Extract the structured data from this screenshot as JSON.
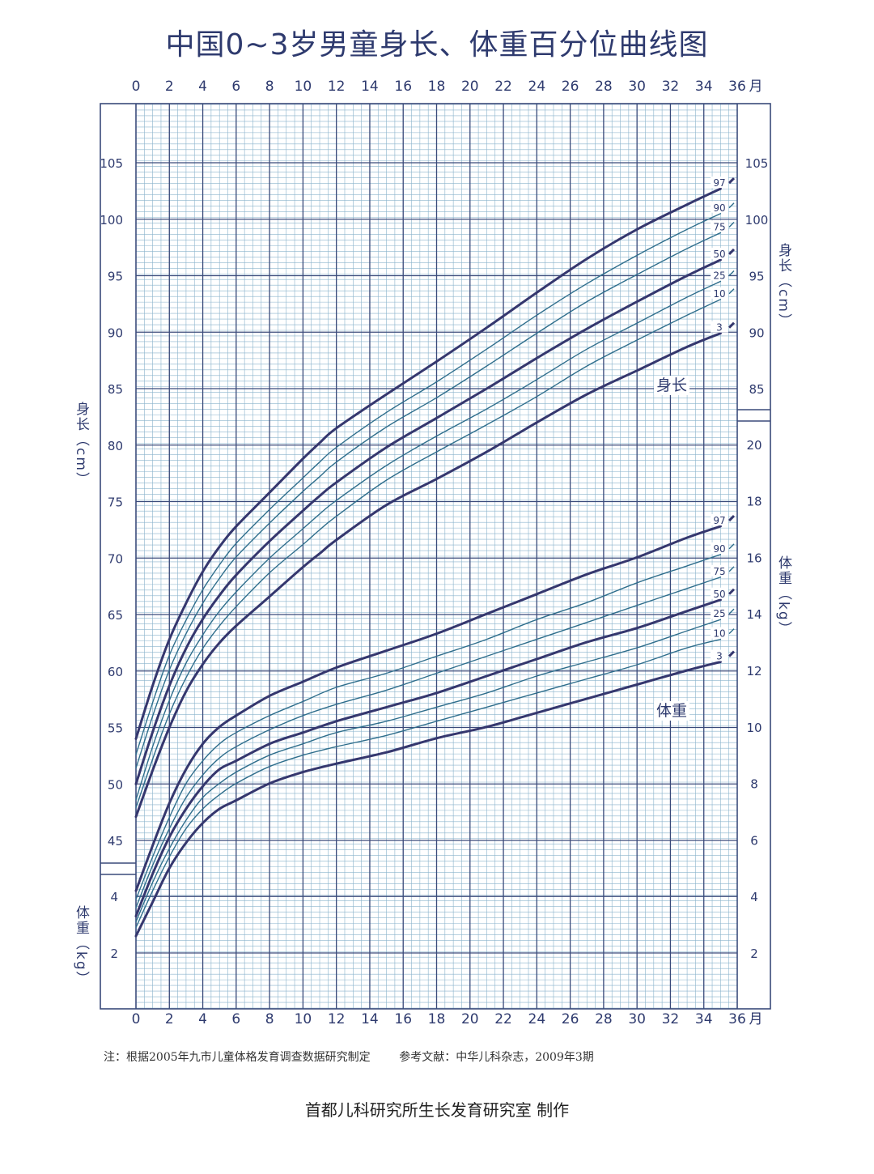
{
  "title": "中国0~3岁男童身长、体重百分位曲线图",
  "note": "注：根据2005年九市儿童体格发育调查数据研究制定        参考文献：中华儿科杂志，2009年3期",
  "credit": "首都儿科研究所生长发育研究室  制作",
  "chart_data": {
    "type": "line",
    "x_unit": "月",
    "x_ticks": [
      0,
      2,
      4,
      6,
      8,
      10,
      12,
      14,
      16,
      18,
      20,
      22,
      24,
      26,
      28,
      30,
      32,
      34,
      36
    ],
    "xlim": [
      0,
      36
    ],
    "colors": {
      "bold": "#35376e",
      "thin": "#2f6e8c",
      "grid_major": "#3a4a7a",
      "grid_minor": "#8ab3cc"
    },
    "length": {
      "axis_label_left": "身长（cm）",
      "axis_label_right": "身长（cm）",
      "curve_label": "身长",
      "ylim": [
        43,
        110
      ],
      "left_ticks": [
        45,
        50,
        55,
        60,
        65,
        70,
        75,
        80,
        85,
        90,
        95,
        100,
        105
      ],
      "right_ticks": [
        85,
        90,
        95,
        100,
        105
      ],
      "months": [
        0,
        1,
        2,
        3,
        4,
        5,
        6,
        8,
        10,
        11,
        12,
        15,
        18,
        21,
        24,
        27,
        30,
        33,
        35
      ],
      "series": [
        {
          "name": "97",
          "bold": true,
          "values": [
            54.0,
            58.7,
            62.8,
            66.0,
            68.8,
            71.0,
            72.8,
            75.8,
            78.8,
            80.2,
            81.5,
            84.5,
            87.4,
            90.4,
            93.5,
            96.5,
            99.1,
            101.3,
            102.7
          ]
        },
        {
          "name": "90",
          "bold": false,
          "values": [
            52.6,
            57.2,
            61.4,
            64.5,
            67.2,
            69.4,
            71.3,
            74.3,
            77.1,
            78.5,
            79.8,
            82.9,
            85.6,
            88.5,
            91.5,
            94.3,
            96.8,
            99.1,
            100.5
          ]
        },
        {
          "name": "75",
          "bold": false,
          "values": [
            51.4,
            56.0,
            60.1,
            63.3,
            66.0,
            68.2,
            70.1,
            73.1,
            75.9,
            77.2,
            78.5,
            81.6,
            84.2,
            87.0,
            89.9,
            92.7,
            95.1,
            97.4,
            98.8
          ]
        },
        {
          "name": "50",
          "bold": true,
          "values": [
            50.0,
            54.6,
            58.7,
            62.0,
            64.6,
            66.7,
            68.5,
            71.5,
            74.2,
            75.5,
            76.7,
            79.8,
            82.4,
            85.0,
            87.7,
            90.3,
            92.7,
            95.0,
            96.4
          ]
        },
        {
          "name": "25",
          "bold": false,
          "values": [
            48.6,
            53.3,
            57.4,
            60.7,
            63.2,
            65.3,
            67.0,
            70.0,
            72.6,
            73.9,
            75.1,
            78.2,
            80.8,
            83.2,
            85.8,
            88.5,
            90.8,
            93.1,
            94.5
          ]
        },
        {
          "name": "10",
          "bold": false,
          "values": [
            47.9,
            52.2,
            56.2,
            59.4,
            62.0,
            64.0,
            65.7,
            68.7,
            71.2,
            72.5,
            73.7,
            76.9,
            79.4,
            81.8,
            84.3,
            87.0,
            89.3,
            91.5,
            92.9
          ]
        },
        {
          "name": "3",
          "bold": true,
          "values": [
            47.1,
            51.2,
            55.0,
            58.2,
            60.6,
            62.5,
            64.0,
            66.6,
            69.2,
            70.4,
            71.6,
            74.7,
            77.0,
            79.4,
            82.0,
            84.5,
            86.6,
            88.7,
            89.9
          ]
        }
      ]
    },
    "weight": {
      "axis_label_left": "体重（kg）",
      "axis_label_right": "体重（kg）",
      "curve_label": "体重",
      "ylim": [
        0,
        22.5
      ],
      "left_ticks": [
        2,
        4
      ],
      "right_ticks": [
        2,
        4,
        6,
        8,
        10,
        12,
        14,
        16,
        18,
        20
      ],
      "months": [
        0,
        1,
        2,
        3,
        4,
        5,
        6,
        8,
        10,
        12,
        15,
        18,
        21,
        24,
        27,
        30,
        33,
        35
      ],
      "series": [
        {
          "name": "97",
          "bold": true,
          "values": [
            4.2,
            5.8,
            7.3,
            8.5,
            9.4,
            10.0,
            10.4,
            11.1,
            11.6,
            12.1,
            12.7,
            13.3,
            14.0,
            14.7,
            15.4,
            16.0,
            16.7,
            17.1
          ]
        },
        {
          "name": "90",
          "bold": false,
          "values": [
            3.9,
            5.4,
            6.8,
            8.0,
            8.8,
            9.4,
            9.8,
            10.4,
            10.9,
            11.4,
            11.9,
            12.5,
            13.1,
            13.8,
            14.4,
            15.1,
            15.7,
            16.1
          ]
        },
        {
          "name": "75",
          "bold": false,
          "values": [
            3.6,
            5.1,
            6.4,
            7.5,
            8.3,
            8.9,
            9.3,
            9.9,
            10.4,
            10.8,
            11.3,
            11.9,
            12.5,
            13.1,
            13.7,
            14.3,
            14.9,
            15.3
          ]
        },
        {
          "name": "50",
          "bold": true,
          "values": [
            3.3,
            4.8,
            6.1,
            7.1,
            7.9,
            8.5,
            8.8,
            9.4,
            9.8,
            10.2,
            10.7,
            11.2,
            11.8,
            12.4,
            13.0,
            13.5,
            14.1,
            14.5
          ]
        },
        {
          "name": "25",
          "bold": false,
          "values": [
            3.1,
            4.5,
            5.7,
            6.7,
            7.5,
            8.0,
            8.4,
            9.0,
            9.4,
            9.8,
            10.2,
            10.7,
            11.2,
            11.8,
            12.3,
            12.8,
            13.4,
            13.8
          ]
        },
        {
          "name": "10",
          "bold": false,
          "values": [
            2.9,
            4.2,
            5.4,
            6.4,
            7.1,
            7.6,
            8.0,
            8.6,
            9.0,
            9.3,
            9.7,
            10.2,
            10.7,
            11.2,
            11.7,
            12.2,
            12.8,
            13.1
          ]
        },
        {
          "name": "3",
          "bold": true,
          "values": [
            2.6,
            3.8,
            5.0,
            5.9,
            6.6,
            7.1,
            7.4,
            8.0,
            8.4,
            8.7,
            9.1,
            9.6,
            10.0,
            10.5,
            11.0,
            11.5,
            12.0,
            12.3
          ]
        }
      ]
    }
  }
}
